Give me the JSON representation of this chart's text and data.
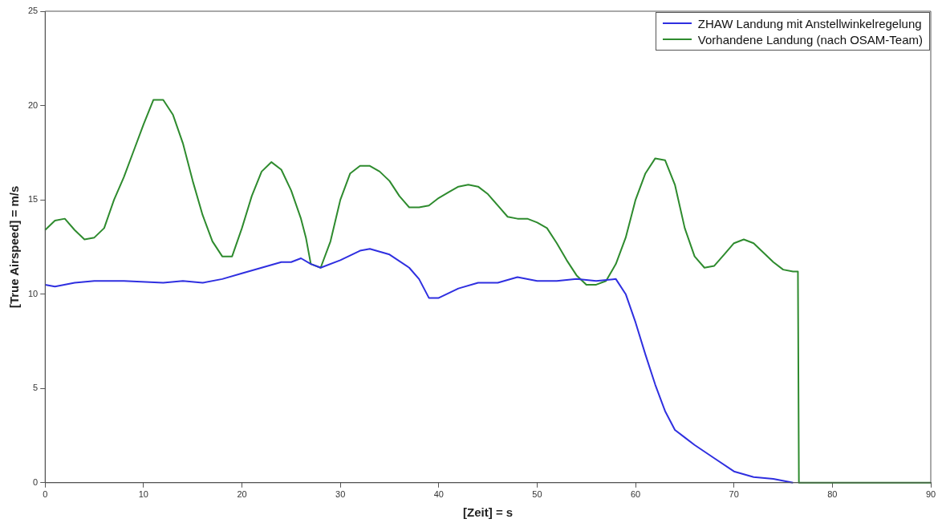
{
  "chart_data": {
    "type": "line",
    "xlabel": "[Zeit] = s",
    "ylabel": "[True Airspeed] = m/s",
    "xlim": [
      0,
      90
    ],
    "xticks": [
      0,
      10,
      20,
      30,
      40,
      50,
      60,
      70,
      80,
      90
    ],
    "ylim": [
      0,
      25
    ],
    "yticks": [
      0,
      5,
      10,
      15,
      20,
      25
    ],
    "legend": "top right",
    "series": [
      {
        "name": "ZHAW Landung mit Anstellwinkelregelung",
        "color": "#2f2fe0",
        "x": [
          0,
          1,
          3,
          5,
          8,
          12,
          14,
          16,
          18,
          20,
          22,
          24,
          25,
          26,
          27,
          28,
          30,
          32,
          33,
          35,
          37,
          38,
          39,
          40,
          42,
          44,
          46,
          48,
          50,
          52,
          54,
          56,
          58,
          59,
          60,
          61,
          62,
          63,
          64,
          65,
          66,
          68,
          70,
          72,
          74,
          76
        ],
        "values": [
          10.5,
          10.4,
          10.6,
          10.7,
          10.7,
          10.6,
          10.7,
          10.6,
          10.8,
          11.1,
          11.4,
          11.7,
          11.7,
          11.9,
          11.6,
          11.4,
          11.8,
          12.3,
          12.4,
          12.1,
          11.4,
          10.8,
          9.8,
          9.8,
          10.3,
          10.6,
          10.6,
          10.9,
          10.7,
          10.7,
          10.8,
          10.7,
          10.8,
          10.0,
          8.5,
          6.8,
          5.2,
          3.8,
          2.8,
          2.4,
          2.0,
          1.3,
          0.6,
          0.3,
          0.2,
          0
        ]
      },
      {
        "name": "Vorhandene Landung (nach OSAM-Team)",
        "color": "#2e8b2e",
        "x": [
          0,
          1,
          2,
          3,
          4,
          5,
          6,
          7,
          8,
          9,
          10,
          11,
          12,
          13,
          14,
          15,
          16,
          17,
          18,
          19,
          20,
          21,
          22,
          23,
          24,
          25,
          26,
          26.5,
          27,
          28,
          29,
          30,
          31,
          32,
          33,
          34,
          35,
          36,
          37,
          38,
          39,
          40,
          41,
          42,
          43,
          44,
          45,
          46,
          47,
          48,
          49,
          50,
          51,
          52,
          53,
          54,
          55,
          56,
          57,
          58,
          59,
          60,
          61,
          62,
          63,
          64,
          65,
          66,
          67,
          68,
          69,
          70,
          71,
          72,
          73,
          74,
          75,
          76,
          76.5,
          76.6,
          90
        ],
        "values": [
          13.4,
          13.9,
          14.0,
          13.4,
          12.9,
          13.0,
          13.5,
          15.0,
          16.2,
          17.6,
          19.0,
          20.3,
          20.3,
          19.5,
          18.0,
          16.0,
          14.2,
          12.8,
          12.0,
          12.0,
          13.5,
          15.2,
          16.5,
          17.0,
          16.6,
          15.5,
          14.0,
          13.0,
          11.6,
          11.4,
          12.8,
          15.0,
          16.4,
          16.8,
          16.8,
          16.5,
          16.0,
          15.2,
          14.6,
          14.6,
          14.7,
          15.1,
          15.4,
          15.7,
          15.8,
          15.7,
          15.3,
          14.7,
          14.1,
          14.0,
          14.0,
          13.8,
          13.5,
          12.7,
          11.8,
          11.0,
          10.5,
          10.5,
          10.7,
          11.6,
          13.0,
          15.0,
          16.4,
          17.2,
          17.1,
          15.8,
          13.5,
          12.0,
          11.4,
          11.5,
          12.1,
          12.7,
          12.9,
          12.7,
          12.2,
          11.7,
          11.3,
          11.2,
          11.2,
          0,
          0
        ]
      }
    ]
  }
}
